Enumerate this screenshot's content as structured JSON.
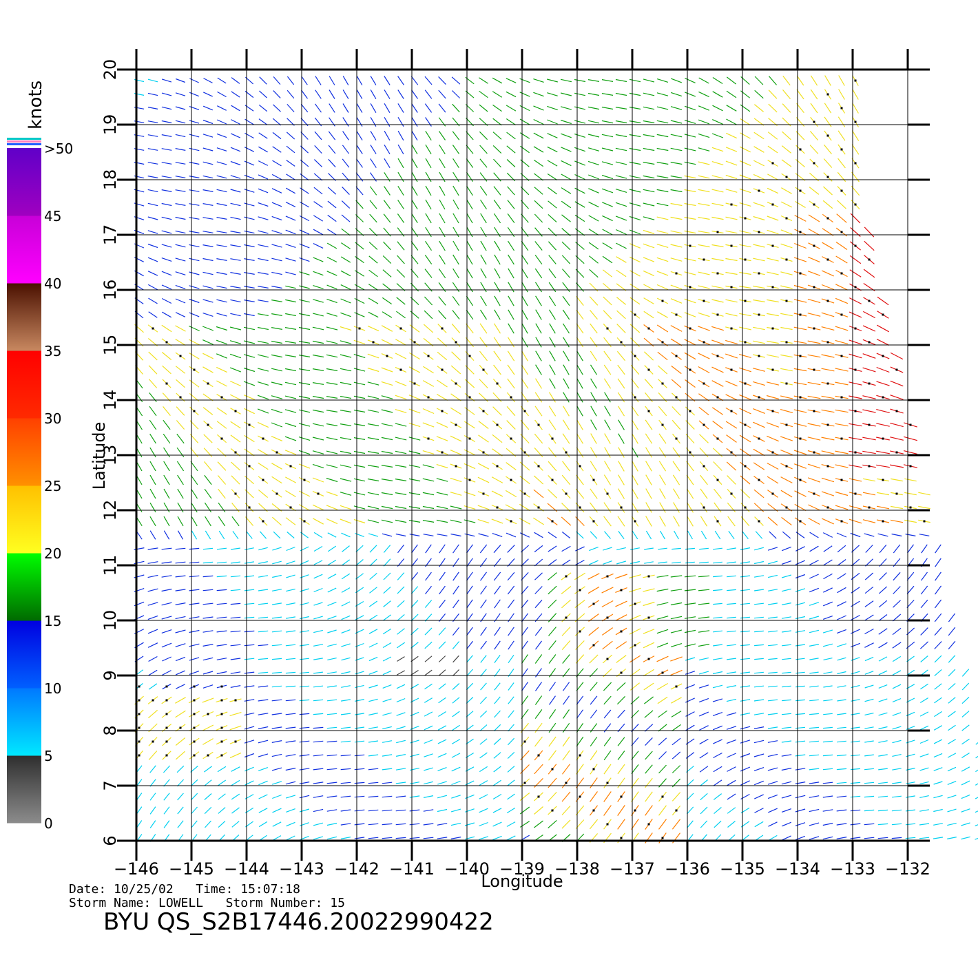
{
  "legend": {
    "unit": "knots",
    "bands": [
      {
        "from": 0,
        "to": 5,
        "colors": [
          "#8c8c8c",
          "#2e2e2e"
        ]
      },
      {
        "from": 5,
        "to": 10,
        "colors": [
          "#00e8ff",
          "#0078ff"
        ]
      },
      {
        "from": 10,
        "to": 15,
        "colors": [
          "#0060ff",
          "#0000e0"
        ]
      },
      {
        "from": 15,
        "to": 20,
        "colors": [
          "#006a00",
          "#00ff00"
        ]
      },
      {
        "from": 20,
        "to": 25,
        "colors": [
          "#ffff20",
          "#ffc000"
        ]
      },
      {
        "from": 25,
        "to": 30,
        "colors": [
          "#ff9000",
          "#ff4000"
        ]
      },
      {
        "from": 30,
        "to": 35,
        "colors": [
          "#ff2a00",
          "#ff0000"
        ]
      },
      {
        "from": 35,
        "to": 40,
        "colors": [
          "#c88860",
          "#4a1000"
        ]
      },
      {
        "from": 40,
        "to": 45,
        "colors": [
          "#ff00ff",
          "#c800d8"
        ]
      },
      {
        "from": 45,
        "to": 50,
        "colors": [
          "#a000c0",
          "#6000c8"
        ]
      }
    ],
    "labels": [
      "0",
      "5",
      "10",
      "15",
      "20",
      "25",
      "30",
      "35",
      "40",
      "45",
      ">50"
    ],
    "cap_colors": [
      "#00c8c8",
      "#ff80c0",
      "#2060ff"
    ]
  },
  "map": {
    "lon_min": -146,
    "lon_max": -132,
    "lat_min": 6,
    "lat_max": 20,
    "lon_ticks": [
      "−146",
      "−145",
      "−144",
      "−143",
      "−142",
      "−141",
      "−140",
      "−139",
      "−138",
      "−137",
      "−136",
      "−135",
      "−134",
      "−133",
      "−132"
    ],
    "lat_ticks": [
      "6",
      "7",
      "8",
      "9",
      "10",
      "11",
      "12",
      "13",
      "14",
      "15",
      "16",
      "17",
      "18",
      "19",
      "20"
    ],
    "xlabel": "Longitude",
    "ylabel": "Latitude"
  },
  "info": {
    "date_line": "Date: 10/25/02   Time: 15:07:18",
    "storm_line": "Storm Name: LOWELL   Storm Number: 15",
    "product": "BYU QS_S2B17446.20022990422"
  },
  "colors": {
    "speed_0_5": "#444444",
    "speed_5_10": "#00d0f0",
    "speed_10_15": "#1030e0",
    "speed_15_20": "#10a010",
    "speed_20_25": "#f0e020",
    "speed_25_30": "#ff8000",
    "speed_30_35": "#e01010"
  }
}
